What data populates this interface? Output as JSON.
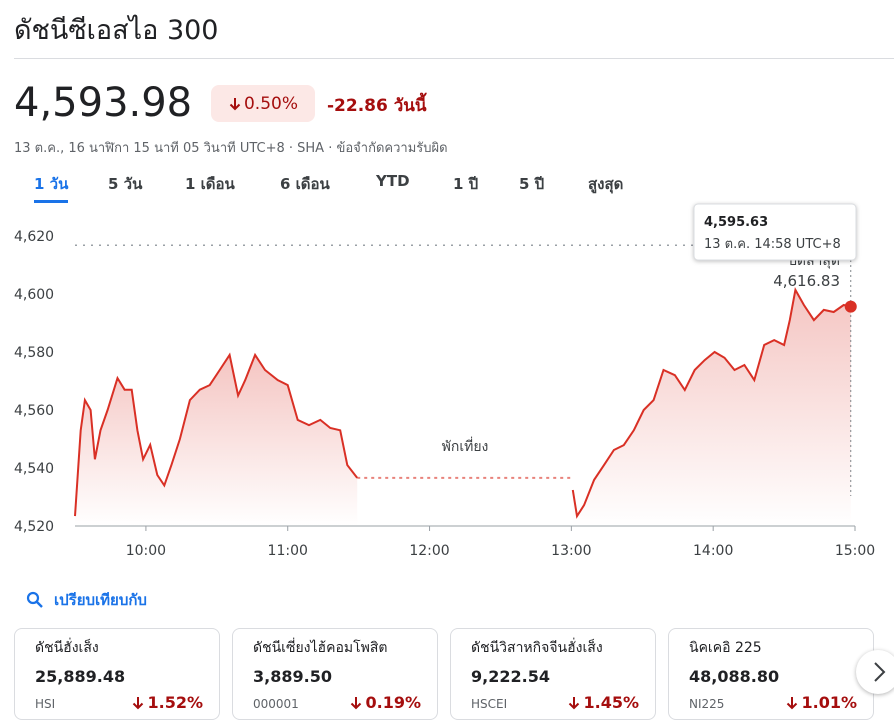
{
  "header": {
    "title": "ดัชนีซีเอสไอ 300",
    "price": "4,593.98",
    "change_pct": "0.50%",
    "change_abs": "-22.86 วันนี้",
    "meta": "13 ต.ค., 16 นาฬิกา 15 นาที 05 วินาที UTC+8 · SHA · ข้อจำกัดความรับผิด"
  },
  "tabs": [
    "1 วัน",
    "5 วัน",
    "1 เดือน",
    "6 เดือน",
    "YTD",
    "1 ปี",
    "5 ปี",
    "สูงสุด"
  ],
  "chart_data": {
    "type": "line",
    "color": "#d93025",
    "x": [
      9.5,
      9.54,
      9.57,
      9.61,
      9.64,
      9.68,
      9.73,
      9.8,
      9.85,
      9.9,
      9.94,
      9.98,
      10.03,
      10.08,
      10.13,
      10.18,
      10.24,
      10.31,
      10.38,
      10.45,
      10.52,
      10.59,
      10.65,
      10.7,
      10.77,
      10.84,
      10.93,
      11.0,
      11.07,
      11.15,
      11.23,
      11.3,
      11.37,
      11.42,
      11.49,
      12.25,
      13.01,
      13.04,
      13.09,
      13.16,
      13.23,
      13.3,
      13.37,
      13.44,
      13.51,
      13.58,
      13.65,
      13.73,
      13.8,
      13.87,
      13.94,
      14.01,
      14.08,
      14.15,
      14.22,
      14.29,
      14.36,
      14.43,
      14.5,
      14.54,
      14.58,
      14.64,
      14.71,
      14.78,
      14.85,
      14.92,
      14.97
    ],
    "values": [
      4523.4,
      4553,
      4563.4,
      4560,
      4543,
      4553,
      4560,
      4571,
      4567,
      4567,
      4553,
      4543,
      4548,
      4537.6,
      4534,
      4541,
      4550,
      4563.4,
      4567,
      4568.6,
      4573.8,
      4579,
      4565,
      4570.3,
      4579,
      4573.8,
      4570.3,
      4568.6,
      4556.6,
      4554.8,
      4556.6,
      4553.8,
      4553,
      4541,
      4536.6,
      null,
      4532.4,
      4523.4,
      4527.2,
      4535.9,
      4541,
      4546.2,
      4547.9,
      4553,
      4560,
      4563.4,
      4573.8,
      4572,
      4566.9,
      4573.8,
      4577.2,
      4580,
      4578,
      4573.8,
      4575.5,
      4570.3,
      4582.4,
      4584.1,
      4582.4,
      4591,
      4601.4,
      4596.2,
      4591,
      4594.5,
      4593.8,
      4596.2,
      4595.63
    ],
    "xlim": [
      9.5,
      15
    ],
    "ylim": [
      4520,
      4620
    ],
    "yticks": [
      {
        "value": 4520,
        "label": "4,520"
      },
      {
        "value": 4540,
        "label": "4,540"
      },
      {
        "value": 4560,
        "label": "4,560"
      },
      {
        "value": 4580,
        "label": "4,580"
      },
      {
        "value": 4600,
        "label": "4,600"
      },
      {
        "value": 4620,
        "label": "4,620"
      }
    ],
    "xticks": [
      {
        "value": 10,
        "label": "10:00"
      },
      {
        "value": 11,
        "label": "11:00"
      },
      {
        "value": 12,
        "label": "12:00"
      },
      {
        "value": 13,
        "label": "13:00"
      },
      {
        "value": 14,
        "label": "14:00"
      },
      {
        "value": 15,
        "label": "15:00"
      }
    ],
    "annotation": "พักเที่ยง",
    "previous_close": {
      "title": "ปิดล่าสุด",
      "value": 4616.83,
      "label": "4,616.83"
    },
    "tooltip": {
      "value": 4595.63,
      "label": "4,595.63",
      "time": "13 ต.ค. 14:58 UTC+8"
    }
  },
  "compare": {
    "title": "เปรียบเทียบกับ",
    "items": [
      {
        "name": "ดัชนีฮั่งเส็ง",
        "value": "25,889.48",
        "code": "HSI",
        "change": "1.52%"
      },
      {
        "name": "ดัชนีเซี่ยงไฮ้คอมโพสิต",
        "value": "3,889.50",
        "code": "000001",
        "change": "0.19%"
      },
      {
        "name": "ดัชนีวิสาหกิจจีนฮั่งเส็ง",
        "value": "9,222.54",
        "code": "HSCEI",
        "change": "1.45%"
      },
      {
        "name": "นิคเคอิ 225",
        "value": "48,088.80",
        "code": "NI225",
        "change": "1.01%"
      }
    ]
  }
}
